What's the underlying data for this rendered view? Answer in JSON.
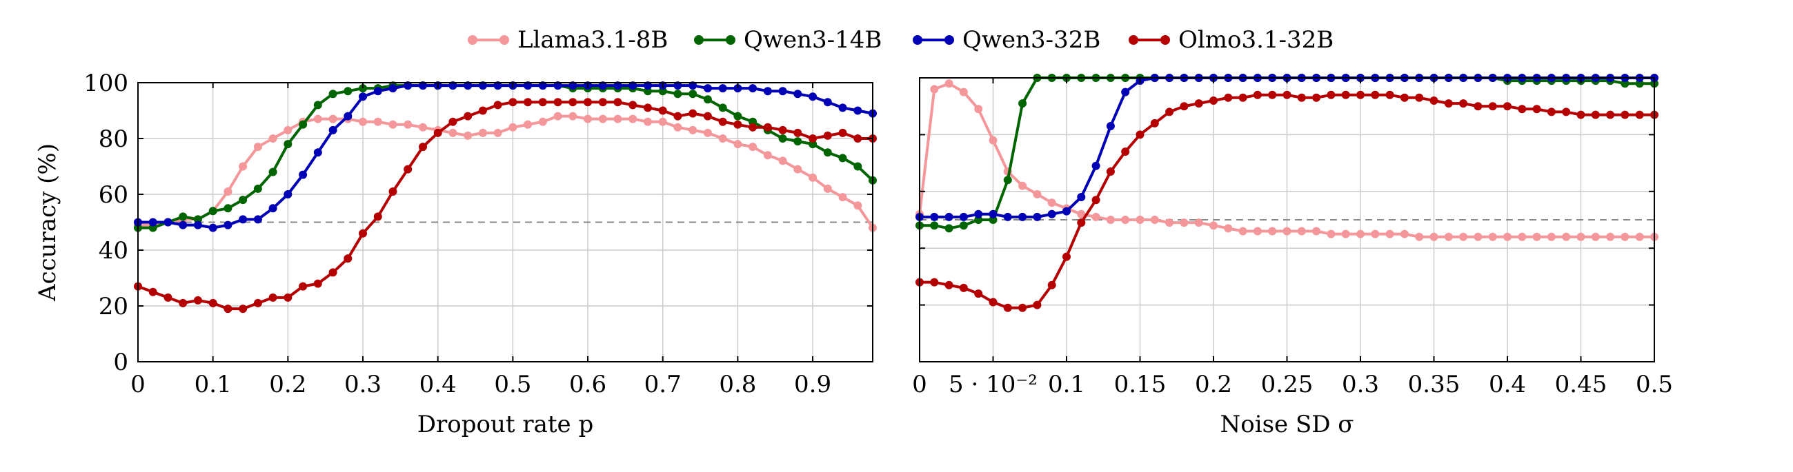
{
  "legend": [
    {
      "name": "Llama3.1-8B",
      "color": "#f4979b"
    },
    {
      "name": "Qwen3-14B",
      "color": "#006400"
    },
    {
      "name": "Qwen3-32B",
      "color": "#0000b4"
    },
    {
      "name": "Olmo3.1-32B",
      "color": "#b40000"
    }
  ],
  "chart_data": [
    {
      "type": "line",
      "xlabel": "Dropout rate p",
      "ylabel": "Accuracy (%)",
      "xlim": [
        0,
        0.98
      ],
      "ylim": [
        0,
        100
      ],
      "xticks": [
        0,
        0.1,
        0.2,
        0.3,
        0.4,
        0.5,
        0.6,
        0.7,
        0.8,
        0.9
      ],
      "xtick_labels": [
        "0",
        "0.1",
        "0.2",
        "0.3",
        "0.4",
        "0.5",
        "0.6",
        "0.7",
        "0.8",
        "0.9"
      ],
      "yticks": [
        0,
        20,
        40,
        60,
        80,
        100
      ],
      "ytick_labels": [
        "0",
        "20",
        "40",
        "60",
        "80",
        "100"
      ],
      "grid": true,
      "reference_line": 50,
      "series": [
        {
          "name": "Llama3.1-8B",
          "color": "#f4979b",
          "x": [
            0,
            0.02,
            0.04,
            0.06,
            0.08,
            0.1,
            0.12,
            0.14,
            0.16,
            0.18,
            0.2,
            0.22,
            0.24,
            0.26,
            0.28,
            0.3,
            0.32,
            0.34,
            0.36,
            0.38,
            0.4,
            0.42,
            0.44,
            0.46,
            0.48,
            0.5,
            0.52,
            0.54,
            0.56,
            0.58,
            0.6,
            0.62,
            0.64,
            0.66,
            0.68,
            0.7,
            0.72,
            0.74,
            0.76,
            0.78,
            0.8,
            0.82,
            0.84,
            0.86,
            0.88,
            0.9,
            0.92,
            0.94,
            0.96,
            0.98
          ],
          "y": [
            49,
            49,
            50,
            51,
            51,
            54,
            61,
            70,
            77,
            80,
            83,
            86,
            87,
            87,
            87,
            86,
            86,
            85,
            85,
            84,
            83,
            82,
            81,
            82,
            82,
            84,
            85,
            86,
            88,
            88,
            87,
            87,
            87,
            87,
            86,
            86,
            84,
            83,
            82,
            80,
            78,
            77,
            74,
            72,
            69,
            66,
            62,
            59,
            56,
            48
          ]
        },
        {
          "name": "Qwen3-14B",
          "color": "#006400",
          "x": [
            0,
            0.02,
            0.04,
            0.06,
            0.08,
            0.1,
            0.12,
            0.14,
            0.16,
            0.18,
            0.2,
            0.22,
            0.24,
            0.26,
            0.28,
            0.3,
            0.32,
            0.34,
            0.36,
            0.38,
            0.4,
            0.42,
            0.44,
            0.46,
            0.48,
            0.5,
            0.52,
            0.54,
            0.56,
            0.58,
            0.6,
            0.62,
            0.64,
            0.66,
            0.68,
            0.7,
            0.72,
            0.74,
            0.76,
            0.78,
            0.8,
            0.82,
            0.84,
            0.86,
            0.88,
            0.9,
            0.92,
            0.94,
            0.96,
            0.98
          ],
          "y": [
            48,
            48,
            50,
            52,
            51,
            54,
            55,
            58,
            62,
            68,
            78,
            85,
            92,
            96,
            97,
            98,
            98,
            99,
            99,
            99,
            99,
            99,
            99,
            99,
            99,
            99,
            99,
            99,
            99,
            98,
            98,
            98,
            98,
            98,
            97,
            97,
            96,
            96,
            94,
            91,
            88,
            86,
            83,
            80,
            79,
            78,
            75,
            73,
            70,
            65
          ]
        },
        {
          "name": "Qwen3-32B",
          "color": "#0000b4",
          "x": [
            0,
            0.02,
            0.04,
            0.06,
            0.08,
            0.1,
            0.12,
            0.14,
            0.16,
            0.18,
            0.2,
            0.22,
            0.24,
            0.26,
            0.28,
            0.3,
            0.32,
            0.34,
            0.36,
            0.38,
            0.4,
            0.42,
            0.44,
            0.46,
            0.48,
            0.5,
            0.52,
            0.54,
            0.56,
            0.58,
            0.6,
            0.62,
            0.64,
            0.66,
            0.68,
            0.7,
            0.72,
            0.74,
            0.76,
            0.78,
            0.8,
            0.82,
            0.84,
            0.86,
            0.88,
            0.9,
            0.92,
            0.94,
            0.96,
            0.98
          ],
          "y": [
            50,
            50,
            50,
            49,
            49,
            48,
            49,
            51,
            51,
            55,
            60,
            67,
            75,
            83,
            88,
            95,
            97,
            98,
            99,
            99,
            99,
            99,
            99,
            99,
            99,
            99,
            99,
            99,
            99,
            99,
            99,
            99,
            99,
            99,
            99,
            99,
            99,
            99,
            98,
            98,
            98,
            98,
            97,
            97,
            96,
            95,
            93,
            91,
            90,
            89
          ]
        },
        {
          "name": "Olmo3.1-32B",
          "color": "#b40000",
          "x": [
            0,
            0.02,
            0.04,
            0.06,
            0.08,
            0.1,
            0.12,
            0.14,
            0.16,
            0.18,
            0.2,
            0.22,
            0.24,
            0.26,
            0.28,
            0.3,
            0.32,
            0.34,
            0.36,
            0.38,
            0.4,
            0.42,
            0.44,
            0.46,
            0.48,
            0.5,
            0.52,
            0.54,
            0.56,
            0.58,
            0.6,
            0.62,
            0.64,
            0.66,
            0.68,
            0.7,
            0.72,
            0.74,
            0.76,
            0.78,
            0.8,
            0.82,
            0.84,
            0.86,
            0.88,
            0.9,
            0.92,
            0.94,
            0.96,
            0.98
          ],
          "y": [
            27,
            25,
            23,
            21,
            22,
            21,
            19,
            19,
            21,
            23,
            23,
            27,
            28,
            32,
            37,
            46,
            52,
            61,
            69,
            77,
            82,
            86,
            88,
            90,
            92,
            93,
            93,
            93,
            93,
            93,
            93,
            93,
            93,
            92,
            91,
            90,
            88,
            89,
            88,
            86,
            85,
            84,
            84,
            83,
            82,
            80,
            81,
            82,
            80,
            80
          ]
        }
      ]
    },
    {
      "type": "line",
      "xlabel": "Noise SD σ",
      "ylabel": "",
      "xlim": [
        0,
        0.5
      ],
      "ylim": [
        0,
        100
      ],
      "xticks": [
        0,
        0.05,
        0.1,
        0.15,
        0.2,
        0.25,
        0.3,
        0.35,
        0.4,
        0.45,
        0.5
      ],
      "xtick_labels": [
        "0",
        "5 · 10⁻²",
        "0.1",
        "0.15",
        "0.2",
        "0.25",
        "0.3",
        "0.35",
        "0.4",
        "0.45",
        "0.5"
      ],
      "yticks": [
        0,
        20,
        40,
        60,
        80,
        100
      ],
      "ytick_labels": [],
      "grid": true,
      "reference_line": 50,
      "series": [
        {
          "name": "Llama3.1-8B",
          "color": "#f4979b",
          "x": [
            0,
            0.01,
            0.02,
            0.03,
            0.04,
            0.05,
            0.06,
            0.07,
            0.08,
            0.09,
            0.1,
            0.11,
            0.12,
            0.13,
            0.14,
            0.15,
            0.16,
            0.17,
            0.18,
            0.19,
            0.2,
            0.21,
            0.22,
            0.23,
            0.24,
            0.25,
            0.26,
            0.27,
            0.28,
            0.29,
            0.3,
            0.31,
            0.32,
            0.33,
            0.34,
            0.35,
            0.36,
            0.37,
            0.38,
            0.39,
            0.4,
            0.41,
            0.42,
            0.43,
            0.44,
            0.45,
            0.46,
            0.47,
            0.48,
            0.49,
            0.5
          ],
          "y": [
            52,
            96,
            98,
            95,
            89,
            78,
            67,
            62,
            59,
            56,
            54,
            52,
            51,
            50,
            50,
            50,
            50,
            49,
            49,
            49,
            48,
            47,
            46,
            46,
            46,
            46,
            46,
            46,
            45,
            45,
            45,
            45,
            45,
            45,
            44,
            44,
            44,
            44,
            44,
            44,
            44,
            44,
            44,
            44,
            44,
            44,
            44,
            44,
            44,
            44,
            44
          ]
        },
        {
          "name": "Qwen3-14B",
          "color": "#006400",
          "x": [
            0,
            0.01,
            0.02,
            0.03,
            0.04,
            0.05,
            0.06,
            0.07,
            0.08,
            0.09,
            0.1,
            0.11,
            0.12,
            0.13,
            0.14,
            0.15,
            0.16,
            0.17,
            0.18,
            0.19,
            0.2,
            0.21,
            0.22,
            0.23,
            0.24,
            0.25,
            0.26,
            0.27,
            0.28,
            0.29,
            0.3,
            0.31,
            0.32,
            0.33,
            0.34,
            0.35,
            0.36,
            0.37,
            0.38,
            0.39,
            0.4,
            0.41,
            0.42,
            0.43,
            0.44,
            0.45,
            0.46,
            0.47,
            0.48,
            0.49,
            0.5
          ],
          "y": [
            48,
            48,
            47,
            48,
            50,
            50,
            64,
            91,
            100,
            100,
            100,
            100,
            100,
            100,
            100,
            100,
            100,
            100,
            100,
            100,
            100,
            100,
            100,
            100,
            100,
            100,
            100,
            100,
            100,
            100,
            100,
            100,
            100,
            100,
            100,
            100,
            100,
            100,
            100,
            100,
            99,
            99,
            99,
            99,
            99,
            99,
            99,
            99,
            98,
            98,
            98
          ]
        },
        {
          "name": "Qwen3-32B",
          "color": "#0000b4",
          "x": [
            0,
            0.01,
            0.02,
            0.03,
            0.04,
            0.05,
            0.06,
            0.07,
            0.08,
            0.09,
            0.1,
            0.11,
            0.12,
            0.13,
            0.14,
            0.15,
            0.16,
            0.17,
            0.18,
            0.19,
            0.2,
            0.21,
            0.22,
            0.23,
            0.24,
            0.25,
            0.26,
            0.27,
            0.28,
            0.29,
            0.3,
            0.31,
            0.32,
            0.33,
            0.34,
            0.35,
            0.36,
            0.37,
            0.38,
            0.39,
            0.4,
            0.41,
            0.42,
            0.43,
            0.44,
            0.45,
            0.46,
            0.47,
            0.48,
            0.49,
            0.5
          ],
          "y": [
            51,
            51,
            51,
            51,
            52,
            52,
            51,
            51,
            51,
            52,
            53,
            58,
            69,
            83,
            95,
            99,
            100,
            100,
            100,
            100,
            100,
            100,
            100,
            100,
            100,
            100,
            100,
            100,
            100,
            100,
            100,
            100,
            100,
            100,
            100,
            100,
            100,
            100,
            100,
            100,
            100,
            100,
            100,
            100,
            100,
            100,
            100,
            100,
            100,
            100,
            100
          ]
        },
        {
          "name": "Olmo3.1-32B",
          "color": "#b40000",
          "x": [
            0,
            0.01,
            0.02,
            0.03,
            0.04,
            0.05,
            0.06,
            0.07,
            0.08,
            0.09,
            0.1,
            0.11,
            0.12,
            0.13,
            0.14,
            0.15,
            0.16,
            0.17,
            0.18,
            0.19,
            0.2,
            0.21,
            0.22,
            0.23,
            0.24,
            0.25,
            0.26,
            0.27,
            0.28,
            0.29,
            0.3,
            0.31,
            0.32,
            0.33,
            0.34,
            0.35,
            0.36,
            0.37,
            0.38,
            0.39,
            0.4,
            0.41,
            0.42,
            0.43,
            0.44,
            0.45,
            0.46,
            0.47,
            0.48,
            0.49,
            0.5
          ],
          "y": [
            28,
            28,
            27,
            26,
            24,
            21,
            19,
            19,
            20,
            27,
            37,
            49,
            57,
            67,
            74,
            80,
            84,
            88,
            90,
            91,
            92,
            93,
            93,
            94,
            94,
            94,
            93,
            93,
            94,
            94,
            94,
            94,
            94,
            93,
            93,
            92,
            91,
            91,
            90,
            90,
            90,
            89,
            89,
            88,
            88,
            87,
            87,
            87,
            87,
            87,
            87
          ]
        }
      ]
    }
  ]
}
